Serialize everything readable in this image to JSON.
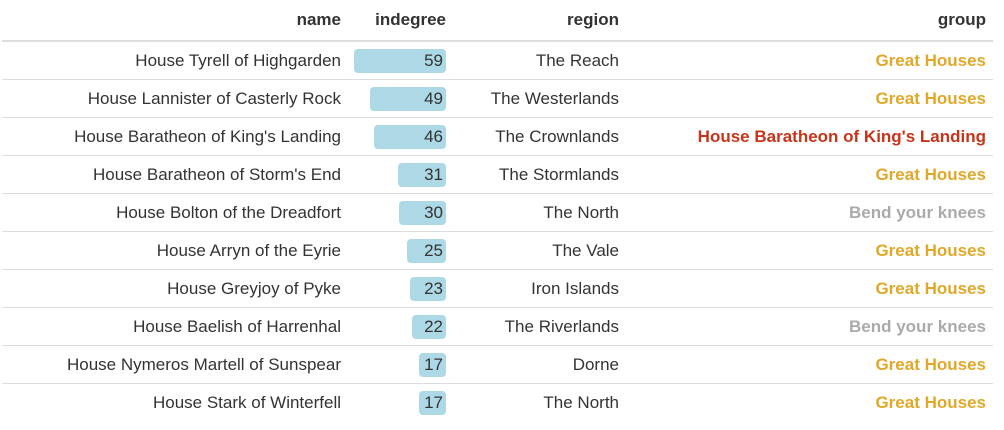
{
  "columns": {
    "name": "name",
    "indegree": "indegree",
    "region": "region",
    "group": "group"
  },
  "colors": {
    "bar": "#add8e6",
    "Great Houses": "#e0a828",
    "House Baratheon of King's Landing": "#c8341a",
    "Bend your knees": "#aaaaaa"
  },
  "indegree_max": 59,
  "rows": [
    {
      "name": "House Tyrell of Highgarden",
      "indegree": "59",
      "region": "The Reach",
      "group": "Great Houses"
    },
    {
      "name": "House Lannister of Casterly Rock",
      "indegree": "49",
      "region": "The Westerlands",
      "group": "Great Houses"
    },
    {
      "name": "House Baratheon of King's Landing",
      "indegree": "46",
      "region": "The Crownlands",
      "group": "House Baratheon of King's Landing"
    },
    {
      "name": "House Baratheon of Storm's End",
      "indegree": "31",
      "region": "The Stormlands",
      "group": "Great Houses"
    },
    {
      "name": "House Bolton of the Dreadfort",
      "indegree": "30",
      "region": "The North",
      "group": "Bend your knees"
    },
    {
      "name": "House Arryn of the Eyrie",
      "indegree": "25",
      "region": "The Vale",
      "group": "Great Houses"
    },
    {
      "name": "House Greyjoy of Pyke",
      "indegree": "23",
      "region": "Iron Islands",
      "group": "Great Houses"
    },
    {
      "name": "House Baelish of Harrenhal",
      "indegree": "22",
      "region": "The Riverlands",
      "group": "Bend your knees"
    },
    {
      "name": "House Nymeros Martell of Sunspear",
      "indegree": "17",
      "region": "Dorne",
      "group": "Great Houses"
    },
    {
      "name": "House Stark of Winterfell",
      "indegree": "17",
      "region": "The North",
      "group": "Great Houses"
    }
  ]
}
